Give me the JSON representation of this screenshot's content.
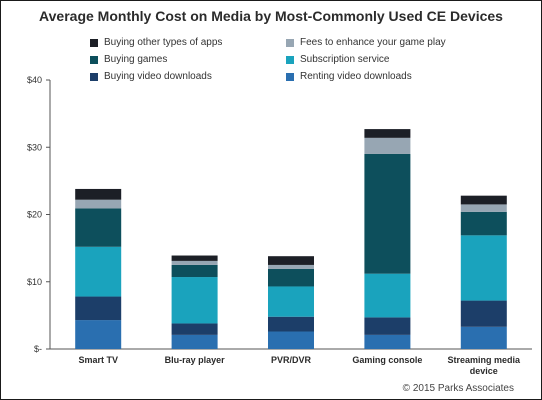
{
  "chart_data": {
    "type": "bar",
    "stacked": true,
    "title": "Average Monthly Cost on Media by Most-Commonly Used CE Devices",
    "categories": [
      "Smart TV",
      "Blu-ray player",
      "PVR/DVR",
      "Gaming console",
      "Streaming media device"
    ],
    "ylim": [
      0,
      40
    ],
    "yticks": [
      "$-",
      "$10",
      "$20",
      "$30",
      "$40"
    ],
    "grid": false,
    "legend_position": "top",
    "series": [
      {
        "name": "Renting video downloads",
        "color": "#2a6fb0",
        "values": [
          4.3,
          2.1,
          2.6,
          2.1,
          3.3
        ]
      },
      {
        "name": "Buying video downloads",
        "color": "#1c3e69",
        "values": [
          3.5,
          1.7,
          2.2,
          2.6,
          3.9
        ]
      },
      {
        "name": "Subscription service",
        "color": "#1aa3bd",
        "values": [
          7.4,
          6.9,
          4.5,
          6.5,
          9.7
        ]
      },
      {
        "name": "Buying games",
        "color": "#0d4f5c",
        "values": [
          5.7,
          1.8,
          2.6,
          17.8,
          3.5
        ]
      },
      {
        "name": "Fees to enhance your game play",
        "color": "#97a6b3",
        "values": [
          1.3,
          0.6,
          0.6,
          2.4,
          1.1
        ]
      },
      {
        "name": "Buying other types of apps",
        "color": "#1c1f26",
        "values": [
          1.6,
          0.8,
          1.3,
          1.3,
          1.3
        ]
      }
    ],
    "legend_order": [
      5,
      4,
      3,
      2,
      1,
      0
    ],
    "source": "© 2015 Parks Associates"
  }
}
